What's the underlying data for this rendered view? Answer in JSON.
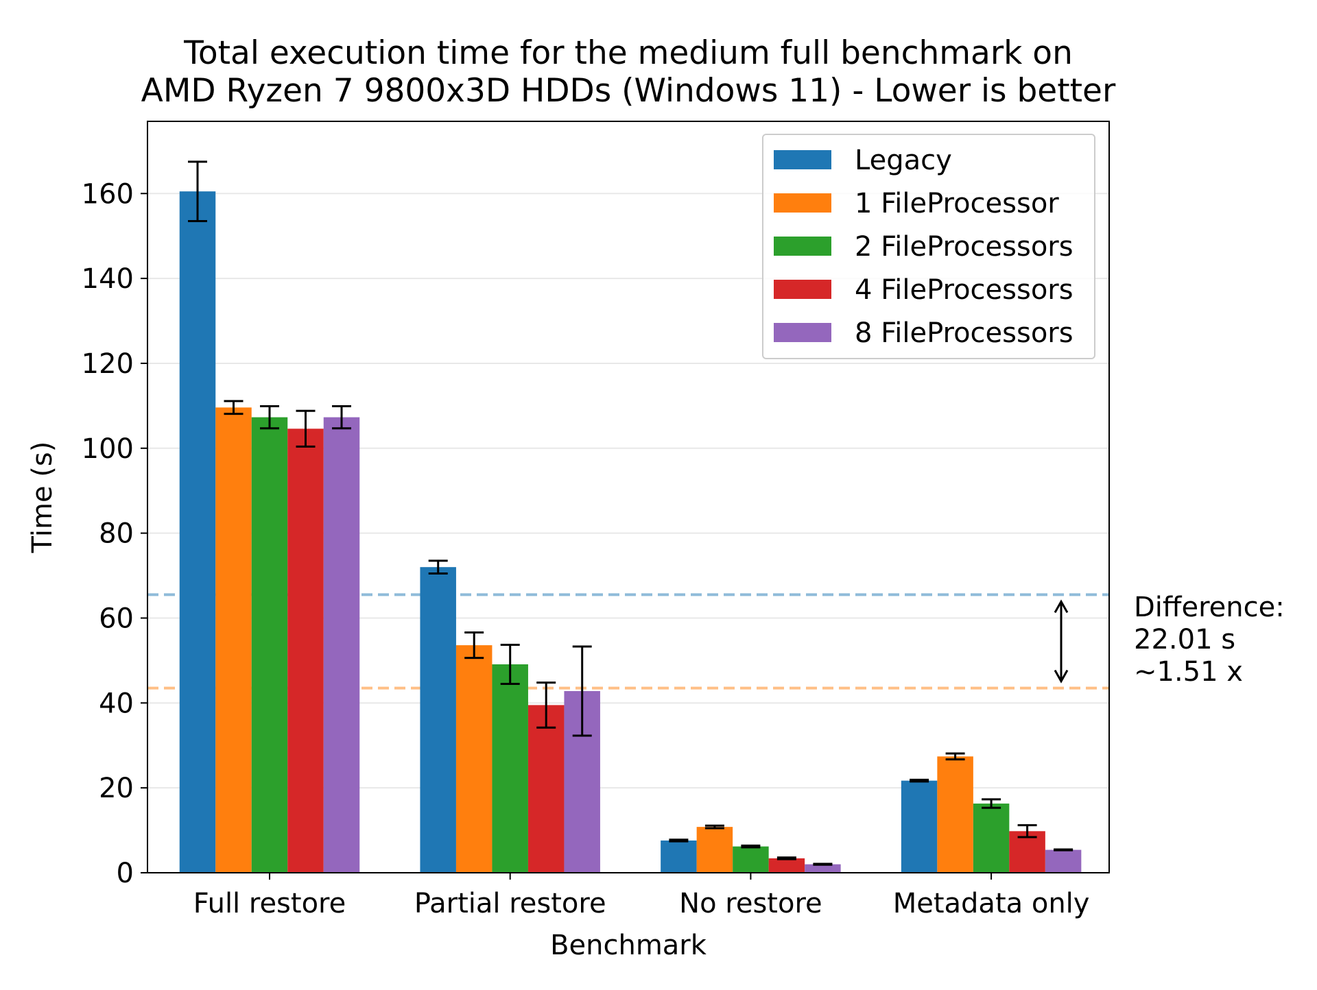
{
  "chart_data": {
    "type": "bar",
    "title_lines": [
      "Total execution time for the medium full benchmark on",
      "AMD Ryzen 7 9800x3D HDDs (Windows 11) - Lower is better"
    ],
    "xlabel": "Benchmark",
    "ylabel": "Time (s)",
    "ylim": [
      0,
      177
    ],
    "yticks": [
      0,
      20,
      40,
      60,
      80,
      100,
      120,
      140,
      160
    ],
    "grid": "horizontal",
    "legend_position": "top-right",
    "categories": [
      "Full restore",
      "Partial restore",
      "No restore",
      "Metadata only"
    ],
    "series": [
      {
        "name": "Legacy",
        "color": "#1f77b4",
        "values": [
          160.5,
          72.0,
          7.6,
          21.7
        ],
        "errors": [
          7.0,
          1.5,
          0.2,
          0.2
        ]
      },
      {
        "name": "1 FileProcessor",
        "color": "#ff7f0e",
        "values": [
          109.6,
          53.6,
          10.8,
          27.4
        ],
        "errors": [
          1.5,
          3.0,
          0.3,
          0.7
        ]
      },
      {
        "name": "2 FileProcessors",
        "color": "#2ca02c",
        "values": [
          107.3,
          49.1,
          6.2,
          16.3
        ],
        "errors": [
          2.6,
          4.6,
          0.2,
          1.0
        ]
      },
      {
        "name": "4 FileProcessors",
        "color": "#d62728",
        "values": [
          104.6,
          39.5,
          3.4,
          9.8
        ],
        "errors": [
          4.2,
          5.3,
          0.2,
          1.4
        ]
      },
      {
        "name": "8 FileProcessors",
        "color": "#9467bd",
        "values": [
          107.3,
          42.8,
          2.0,
          5.4
        ],
        "errors": [
          2.6,
          10.5,
          0.1,
          0.1
        ]
      }
    ],
    "reference_lines": [
      {
        "value": 65.5,
        "color": "#1f77b4",
        "style": "dashed"
      },
      {
        "value": 43.5,
        "color": "#ff7f0e",
        "style": "dashed"
      }
    ],
    "annotation": {
      "lines": [
        "Difference:",
        "22.01 s",
        "~1.51 x"
      ]
    }
  }
}
